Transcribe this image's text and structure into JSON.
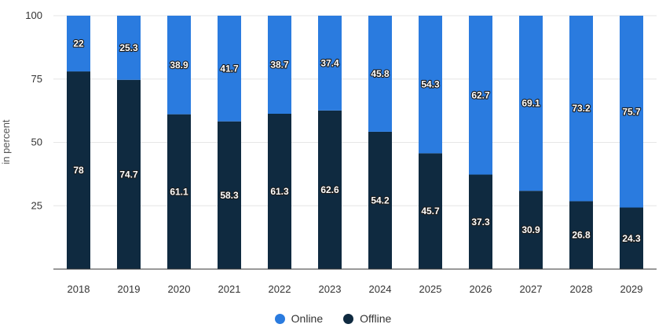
{
  "chart_data": {
    "type": "bar",
    "stacked": true,
    "categories": [
      "2018",
      "2019",
      "2020",
      "2021",
      "2022",
      "2023",
      "2024",
      "2025",
      "2026",
      "2027",
      "2028",
      "2029"
    ],
    "series": [
      {
        "name": "Offline",
        "color": "#0f2a40",
        "values": [
          78,
          74.7,
          61.1,
          58.3,
          61.3,
          62.6,
          54.2,
          45.7,
          37.3,
          30.9,
          26.8,
          24.3
        ]
      },
      {
        "name": "Online",
        "color": "#2a7bdf",
        "values": [
          22,
          25.3,
          38.9,
          41.7,
          38.7,
          37.4,
          45.8,
          54.3,
          62.7,
          69.1,
          73.2,
          75.7
        ]
      }
    ],
    "ylabel": "in percent",
    "ylim": [
      0,
      100
    ],
    "yticks": [
      25,
      50,
      75,
      100
    ],
    "grid": true,
    "legend_position": "bottom"
  },
  "legend": {
    "online_label": "Online",
    "offline_label": "Offline",
    "online_color": "#2a7bdf",
    "offline_color": "#0f2a40"
  }
}
